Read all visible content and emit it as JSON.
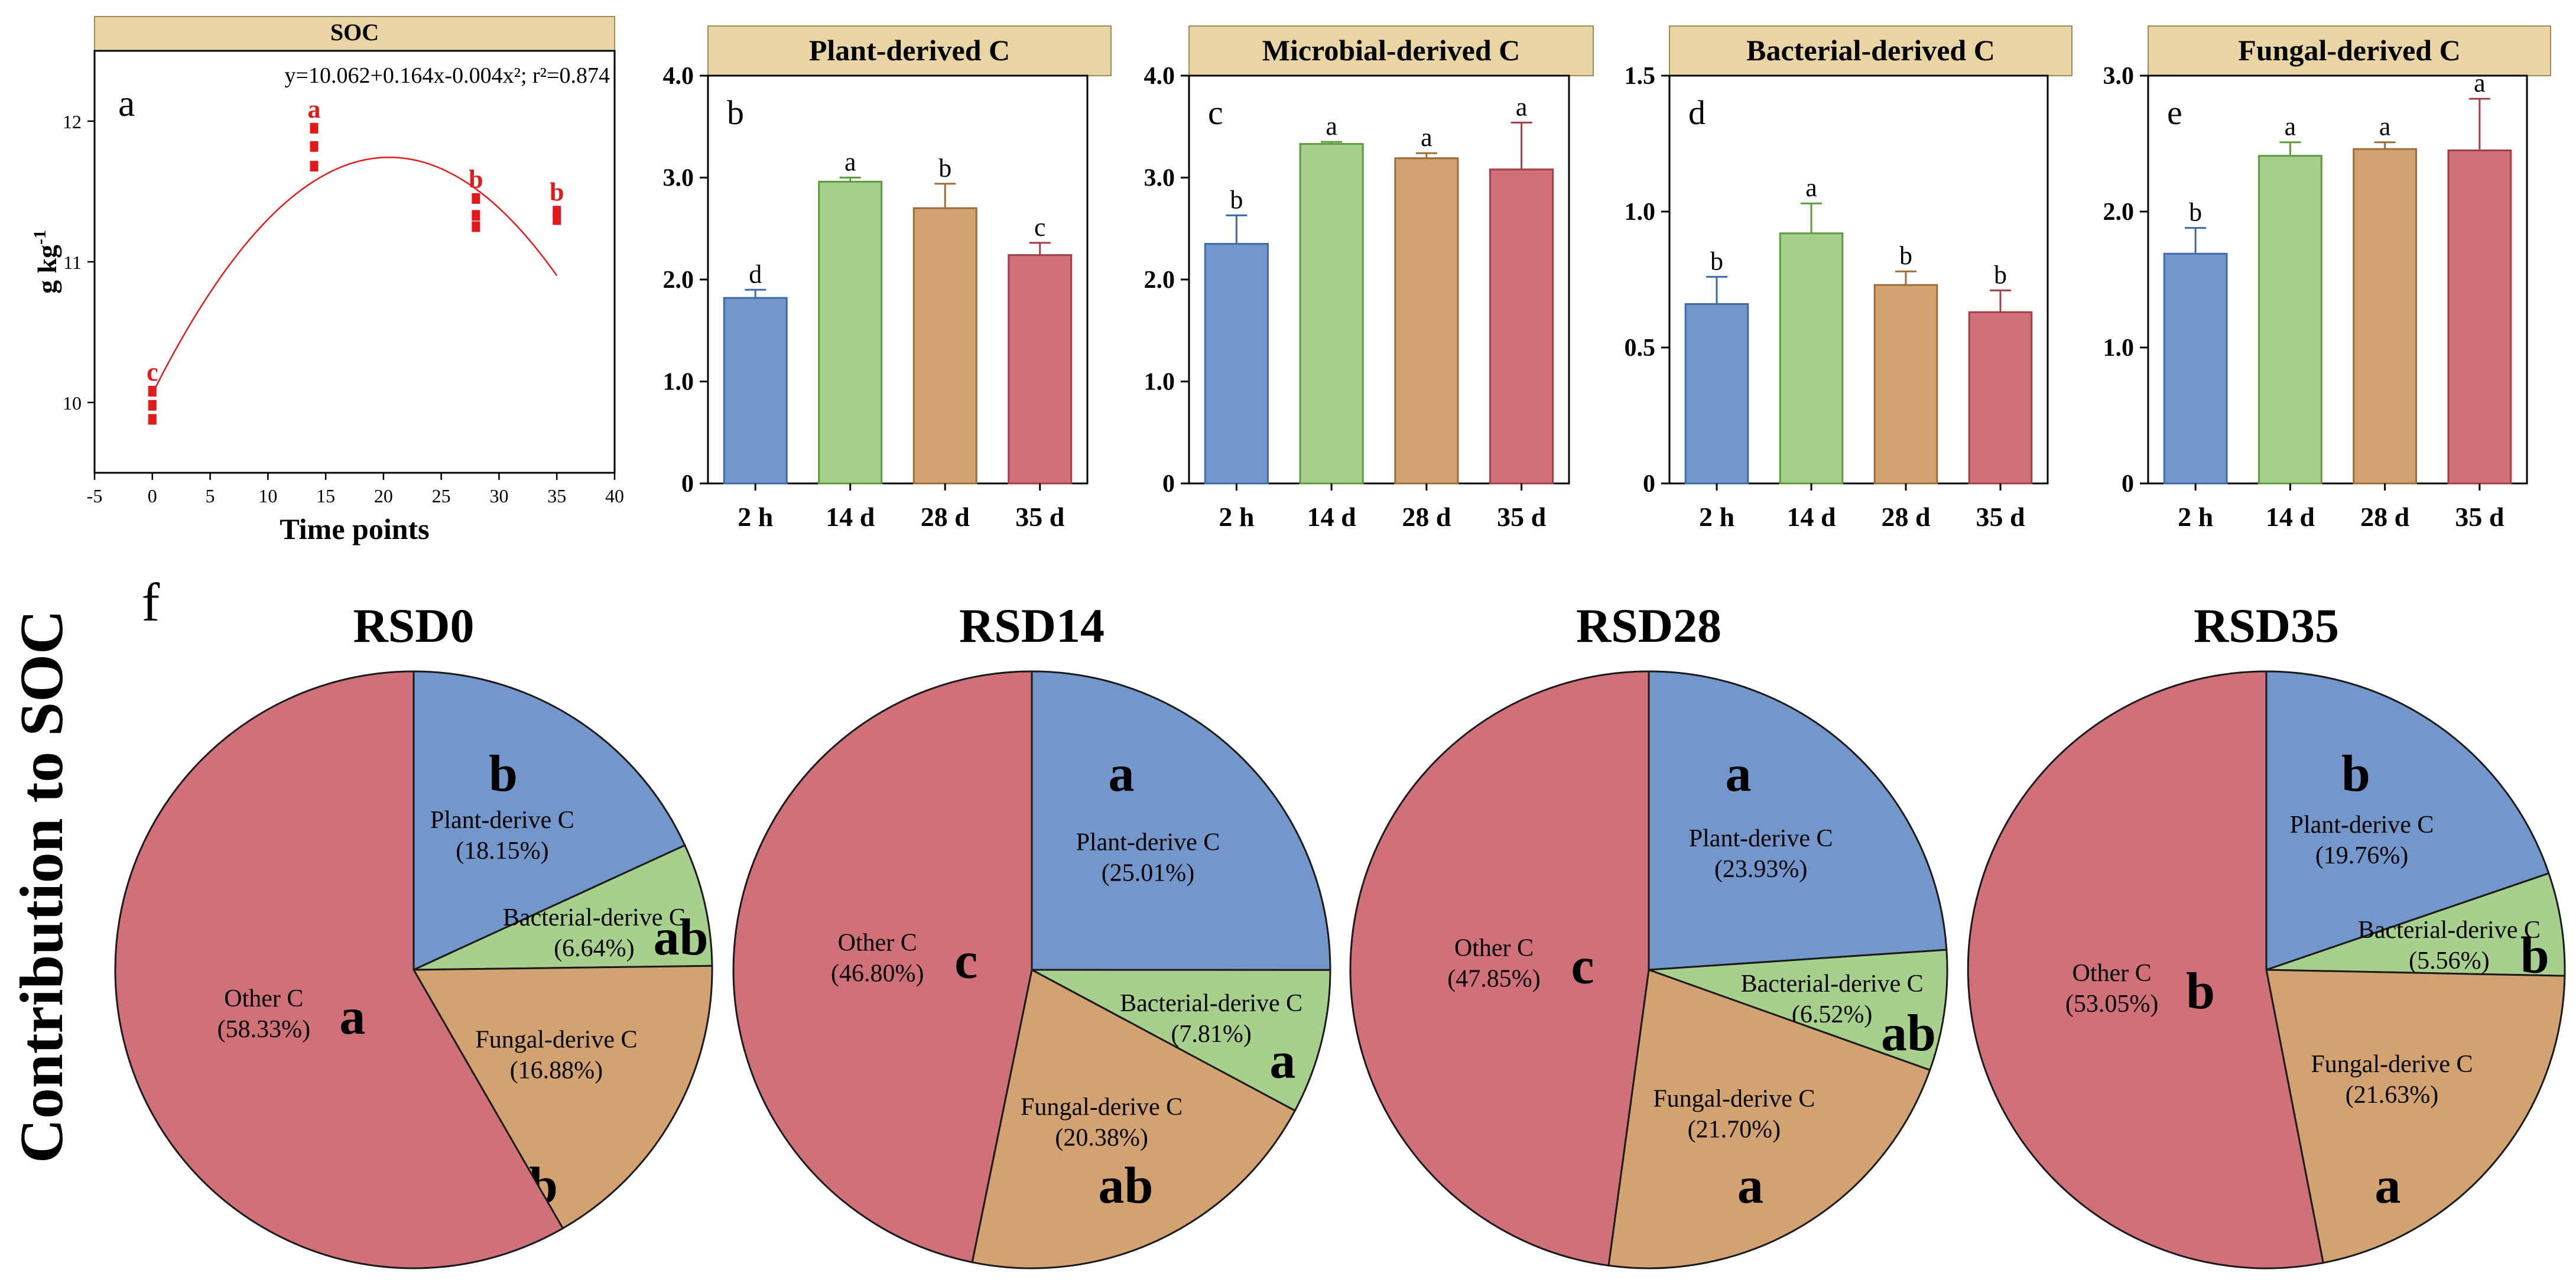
{
  "panels_top": {
    "soc": {
      "title": "SOC",
      "panel_letter": "a",
      "equation": "y=10.062+0.164x-0.004x²; r²=0.874",
      "ylabel_main": "g kg",
      "ylabel_sup": "-1",
      "xlabel": "Time points",
      "x_ticks": [
        "-5",
        "0",
        "5",
        "10",
        "15",
        "20",
        "25",
        "30",
        "35",
        "40"
      ],
      "y_ticks": [
        "10",
        "11",
        "12"
      ]
    },
    "bars": [
      {
        "title": "Plant-derived C",
        "panel_letter": "b",
        "y_ticks": [
          "0",
          "1.0",
          "2.0",
          "3.0",
          "4.0"
        ]
      },
      {
        "title": "Microbial-derived C",
        "panel_letter": "c",
        "y_ticks": [
          "0",
          "1.0",
          "2.0",
          "3.0",
          "4.0"
        ]
      },
      {
        "title": "Bacterial-derived C",
        "panel_letter": "d",
        "y_ticks": [
          "0",
          "0.5",
          "1.0",
          "1.5"
        ]
      },
      {
        "title": "Fungal-derived C",
        "panel_letter": "e",
        "y_ticks": [
          "0",
          "1.0",
          "2.0",
          "3.0"
        ]
      }
    ]
  },
  "pies_section": {
    "panel_letter": "f",
    "ylabel": "Contribution to SOC"
  },
  "chart_data": [
    {
      "type": "scatter",
      "title": "SOC",
      "xlabel": "Time points",
      "ylabel": "g kg-1",
      "xlim": [
        -5,
        40
      ],
      "ylim": [
        9.5,
        12.5
      ],
      "points": [
        {
          "x": 0,
          "y": 9.88
        },
        {
          "x": 0,
          "y": 9.98
        },
        {
          "x": 0,
          "y": 10.08
        },
        {
          "x": 14,
          "y": 11.68
        },
        {
          "x": 14,
          "y": 11.82
        },
        {
          "x": 14,
          "y": 11.95
        },
        {
          "x": 28,
          "y": 11.25
        },
        {
          "x": 28,
          "y": 11.33
        },
        {
          "x": 28,
          "y": 11.45
        },
        {
          "x": 35,
          "y": 11.3
        },
        {
          "x": 35,
          "y": 11.36
        }
      ],
      "letters": [
        {
          "x": 0,
          "label": "c"
        },
        {
          "x": 14,
          "label": "a"
        },
        {
          "x": 28,
          "label": "b"
        },
        {
          "x": 35,
          "label": "b"
        }
      ],
      "fit": {
        "intercept": 10.062,
        "b1": 0.164,
        "b2": -0.004,
        "x_range": [
          0,
          35
        ]
      },
      "color": "#e31a1c"
    },
    {
      "type": "bar",
      "title": "Plant-derived C",
      "categories": [
        "2 h",
        "14 d",
        "28 d",
        "35 d"
      ],
      "values": [
        1.82,
        2.96,
        2.7,
        2.24
      ],
      "errors": [
        0.08,
        0.04,
        0.24,
        0.12
      ],
      "letters": [
        "d",
        "a",
        "b",
        "c"
      ],
      "ylim": [
        0,
        4
      ]
    },
    {
      "type": "bar",
      "title": "Microbial-derived C",
      "categories": [
        "2 h",
        "14 d",
        "28 d",
        "35 d"
      ],
      "values": [
        2.35,
        3.33,
        3.19,
        3.08
      ],
      "errors": [
        0.28,
        0.02,
        0.05,
        0.46
      ],
      "letters": [
        "b",
        "a",
        "a",
        "a"
      ],
      "ylim": [
        0,
        4
      ]
    },
    {
      "type": "bar",
      "title": "Bacterial-derived C",
      "categories": [
        "2 h",
        "14 d",
        "28 d",
        "35 d"
      ],
      "values": [
        0.66,
        0.92,
        0.73,
        0.63
      ],
      "errors": [
        0.1,
        0.11,
        0.05,
        0.08
      ],
      "letters": [
        "b",
        "a",
        "b",
        "b"
      ],
      "ylim": [
        0,
        1.5
      ]
    },
    {
      "type": "bar",
      "title": "Fungal-derived C",
      "categories": [
        "2 h",
        "14 d",
        "28 d",
        "35 d"
      ],
      "values": [
        1.69,
        2.41,
        2.46,
        2.45
      ],
      "errors": [
        0.19,
        0.1,
        0.05,
        0.38
      ],
      "letters": [
        "b",
        "a",
        "a",
        "a"
      ],
      "ylim": [
        0,
        3
      ]
    },
    {
      "type": "pie",
      "title": "RSD0",
      "slices": [
        {
          "label": "Plant-derive C",
          "percent_text": "(18.15%)",
          "value": 18.15,
          "letter": "b",
          "color": "#7397cb"
        },
        {
          "label": "Bacterial-derive C",
          "percent_text": "(6.64%)",
          "value": 6.64,
          "letter": "ab",
          "color": "#a8d08d"
        },
        {
          "label": "Fungal-derive C",
          "percent_text": "(16.88%)",
          "value": 16.88,
          "letter": "b",
          "color": "#d3a271"
        },
        {
          "label": "Other C",
          "percent_text": "(58.33%)",
          "value": 58.33,
          "letter": "a",
          "color": "#d0717a"
        }
      ]
    },
    {
      "type": "pie",
      "title": "RSD14",
      "slices": [
        {
          "label": "Plant-derive C",
          "percent_text": "(25.01%)",
          "value": 25.01,
          "letter": "a",
          "color": "#7397cb"
        },
        {
          "label": "Bacterial-derive C",
          "percent_text": "(7.81%)",
          "value": 7.81,
          "letter": "a",
          "color": "#a8d08d"
        },
        {
          "label": "Fungal-derive C",
          "percent_text": "(20.38%)",
          "value": 20.38,
          "letter": "ab",
          "color": "#d3a271"
        },
        {
          "label": "Other C",
          "percent_text": "(46.80%)",
          "value": 46.8,
          "letter": "c",
          "color": "#d0717a"
        }
      ]
    },
    {
      "type": "pie",
      "title": "RSD28",
      "slices": [
        {
          "label": "Plant-derive C",
          "percent_text": "(23.93%)",
          "value": 23.93,
          "letter": "a",
          "color": "#7397cb"
        },
        {
          "label": "Bacterial-derive C",
          "percent_text": "(6.52%)",
          "value": 6.52,
          "letter": "ab",
          "color": "#a8d08d"
        },
        {
          "label": "Fungal-derive C",
          "percent_text": "(21.70%)",
          "value": 21.7,
          "letter": "a",
          "color": "#d3a271"
        },
        {
          "label": "Other C",
          "percent_text": "(47.85%)",
          "value": 47.85,
          "letter": "c",
          "color": "#d0717a"
        }
      ]
    },
    {
      "type": "pie",
      "title": "RSD35",
      "slices": [
        {
          "label": "Plant-derive C",
          "percent_text": "(19.76%)",
          "value": 19.76,
          "letter": "b",
          "color": "#7397cb"
        },
        {
          "label": "Bacterial-derive C",
          "percent_text": "(5.56%)",
          "value": 5.56,
          "letter": "b",
          "color": "#a8d08d"
        },
        {
          "label": "Fungal-derive C",
          "percent_text": "(21.63%)",
          "value": 21.63,
          "letter": "a",
          "color": "#d3a271"
        },
        {
          "label": "Other C",
          "percent_text": "(53.05%)",
          "value": 53.05,
          "letter": "b",
          "color": "#d0717a"
        }
      ]
    }
  ],
  "colors": {
    "bar_2h": "#7397cb",
    "bar_14d": "#a8d08d",
    "bar_28d": "#d3a271",
    "bar_35d": "#d0717a",
    "title_band": "#e8d5a3",
    "bar_outline_2h": "#3f6aa8",
    "bar_outline_14d": "#5e9a3f",
    "bar_outline_28d": "#9c6c3a",
    "bar_outline_35d": "#a53c47"
  }
}
